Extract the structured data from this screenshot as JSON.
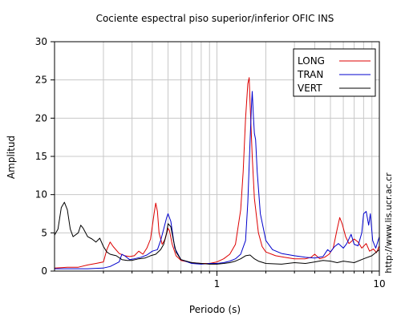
{
  "chart_data": {
    "type": "line",
    "title": "Cociente espectral piso superior/inferior  OFIC INS",
    "xlabel": "Periodo (s)",
    "ylabel": "Amplitud",
    "watermark": "http://www.lis.ucr.ac.cr",
    "x_scale": "log",
    "xlim": [
      0.1,
      10
    ],
    "ylim": [
      0,
      30
    ],
    "x_tick_labels": [
      {
        "value": 1,
        "label": "1"
      },
      {
        "value": 10,
        "label": "10"
      }
    ],
    "y_ticks": [
      0,
      5,
      10,
      15,
      20,
      25,
      30
    ],
    "grid": true,
    "legend_position": "top-right",
    "series": [
      {
        "name": "LONG",
        "color": "#dd0000",
        "points": [
          [
            0.1,
            0.4
          ],
          [
            0.12,
            0.5
          ],
          [
            0.14,
            0.5
          ],
          [
            0.16,
            0.8
          ],
          [
            0.18,
            1.0
          ],
          [
            0.2,
            1.2
          ],
          [
            0.21,
            2.8
          ],
          [
            0.22,
            3.8
          ],
          [
            0.23,
            3.2
          ],
          [
            0.25,
            2.3
          ],
          [
            0.27,
            2.0
          ],
          [
            0.29,
            1.9
          ],
          [
            0.31,
            2.0
          ],
          [
            0.33,
            2.6
          ],
          [
            0.35,
            2.2
          ],
          [
            0.37,
            3.0
          ],
          [
            0.39,
            4.2
          ],
          [
            0.41,
            7.5
          ],
          [
            0.42,
            8.9
          ],
          [
            0.43,
            7.8
          ],
          [
            0.44,
            5.0
          ],
          [
            0.46,
            3.5
          ],
          [
            0.48,
            4.2
          ],
          [
            0.5,
            5.6
          ],
          [
            0.51,
            5.3
          ],
          [
            0.53,
            3.5
          ],
          [
            0.56,
            2.0
          ],
          [
            0.6,
            1.4
          ],
          [
            0.7,
            1.1
          ],
          [
            0.8,
            1.0
          ],
          [
            0.9,
            1.0
          ],
          [
            1.0,
            1.2
          ],
          [
            1.1,
            1.6
          ],
          [
            1.2,
            2.2
          ],
          [
            1.3,
            3.5
          ],
          [
            1.4,
            8.0
          ],
          [
            1.45,
            13.0
          ],
          [
            1.5,
            20.0
          ],
          [
            1.55,
            24.5
          ],
          [
            1.58,
            25.3
          ],
          [
            1.6,
            22.0
          ],
          [
            1.65,
            15.0
          ],
          [
            1.7,
            9.5
          ],
          [
            1.8,
            5.0
          ],
          [
            1.9,
            3.2
          ],
          [
            2.0,
            2.5
          ],
          [
            2.3,
            2.0
          ],
          [
            2.6,
            1.8
          ],
          [
            3.0,
            1.6
          ],
          [
            3.5,
            1.6
          ],
          [
            3.8,
            1.8
          ],
          [
            4.0,
            2.2
          ],
          [
            4.3,
            1.6
          ],
          [
            4.6,
            1.8
          ],
          [
            4.9,
            2.2
          ],
          [
            5.2,
            3.0
          ],
          [
            5.5,
            5.5
          ],
          [
            5.7,
            7.0
          ],
          [
            5.9,
            6.2
          ],
          [
            6.2,
            4.5
          ],
          [
            6.5,
            3.6
          ],
          [
            7.0,
            4.2
          ],
          [
            7.4,
            3.8
          ],
          [
            7.8,
            3.0
          ],
          [
            8.3,
            3.6
          ],
          [
            8.7,
            2.6
          ],
          [
            9.2,
            2.9
          ],
          [
            9.6,
            2.4
          ],
          [
            10.0,
            3.3
          ]
        ]
      },
      {
        "name": "TRAN",
        "color": "#0000cc",
        "points": [
          [
            0.1,
            0.3
          ],
          [
            0.13,
            0.3
          ],
          [
            0.16,
            0.3
          ],
          [
            0.2,
            0.4
          ],
          [
            0.22,
            0.6
          ],
          [
            0.25,
            1.2
          ],
          [
            0.26,
            2.2
          ],
          [
            0.27,
            2.0
          ],
          [
            0.29,
            1.5
          ],
          [
            0.31,
            1.6
          ],
          [
            0.34,
            1.8
          ],
          [
            0.37,
            2.1
          ],
          [
            0.4,
            2.6
          ],
          [
            0.43,
            2.8
          ],
          [
            0.45,
            4.0
          ],
          [
            0.47,
            5.5
          ],
          [
            0.49,
            7.0
          ],
          [
            0.5,
            7.5
          ],
          [
            0.52,
            6.5
          ],
          [
            0.55,
            3.0
          ],
          [
            0.6,
            1.5
          ],
          [
            0.7,
            1.0
          ],
          [
            0.8,
            0.9
          ],
          [
            0.9,
            1.0
          ],
          [
            1.0,
            1.0
          ],
          [
            1.1,
            1.1
          ],
          [
            1.2,
            1.3
          ],
          [
            1.3,
            1.6
          ],
          [
            1.4,
            2.2
          ],
          [
            1.5,
            4.0
          ],
          [
            1.55,
            9.0
          ],
          [
            1.6,
            17.0
          ],
          [
            1.63,
            21.5
          ],
          [
            1.65,
            23.5
          ],
          [
            1.68,
            20.0
          ],
          [
            1.7,
            18.0
          ],
          [
            1.73,
            17.2
          ],
          [
            1.77,
            13.0
          ],
          [
            1.85,
            7.5
          ],
          [
            2.0,
            4.0
          ],
          [
            2.2,
            2.8
          ],
          [
            2.5,
            2.3
          ],
          [
            3.0,
            2.0
          ],
          [
            3.5,
            1.8
          ],
          [
            4.0,
            1.7
          ],
          [
            4.5,
            1.9
          ],
          [
            4.8,
            2.8
          ],
          [
            5.0,
            2.5
          ],
          [
            5.3,
            3.2
          ],
          [
            5.6,
            3.6
          ],
          [
            6.0,
            3.0
          ],
          [
            6.3,
            3.6
          ],
          [
            6.7,
            4.8
          ],
          [
            7.0,
            3.5
          ],
          [
            7.4,
            3.3
          ],
          [
            7.8,
            5.0
          ],
          [
            8.0,
            7.5
          ],
          [
            8.3,
            7.8
          ],
          [
            8.6,
            6.0
          ],
          [
            8.8,
            7.5
          ],
          [
            9.1,
            4.0
          ],
          [
            9.5,
            3.0
          ],
          [
            10.0,
            4.5
          ]
        ]
      },
      {
        "name": "VERT",
        "color": "#000000",
        "points": [
          [
            0.1,
            4.7
          ],
          [
            0.105,
            5.5
          ],
          [
            0.11,
            8.3
          ],
          [
            0.115,
            9.0
          ],
          [
            0.12,
            8.0
          ],
          [
            0.125,
            5.5
          ],
          [
            0.13,
            4.5
          ],
          [
            0.14,
            5.0
          ],
          [
            0.145,
            6.0
          ],
          [
            0.15,
            5.6
          ],
          [
            0.16,
            4.5
          ],
          [
            0.17,
            4.2
          ],
          [
            0.18,
            3.8
          ],
          [
            0.19,
            4.3
          ],
          [
            0.2,
            3.2
          ],
          [
            0.21,
            2.5
          ],
          [
            0.22,
            2.2
          ],
          [
            0.23,
            2.1
          ],
          [
            0.24,
            2.0
          ],
          [
            0.26,
            1.5
          ],
          [
            0.28,
            1.4
          ],
          [
            0.3,
            1.4
          ],
          [
            0.33,
            1.6
          ],
          [
            0.36,
            1.7
          ],
          [
            0.39,
            2.0
          ],
          [
            0.42,
            2.2
          ],
          [
            0.45,
            2.8
          ],
          [
            0.47,
            3.5
          ],
          [
            0.49,
            5.0
          ],
          [
            0.5,
            6.2
          ],
          [
            0.52,
            5.8
          ],
          [
            0.54,
            4.0
          ],
          [
            0.56,
            2.5
          ],
          [
            0.6,
            1.5
          ],
          [
            0.7,
            1.1
          ],
          [
            0.8,
            1.0
          ],
          [
            0.9,
            0.9
          ],
          [
            1.0,
            0.9
          ],
          [
            1.1,
            1.0
          ],
          [
            1.2,
            1.1
          ],
          [
            1.3,
            1.3
          ],
          [
            1.4,
            1.6
          ],
          [
            1.5,
            2.0
          ],
          [
            1.6,
            2.1
          ],
          [
            1.7,
            1.6
          ],
          [
            1.8,
            1.3
          ],
          [
            2.0,
            1.0
          ],
          [
            2.5,
            0.9
          ],
          [
            3.0,
            1.1
          ],
          [
            3.5,
            1.0
          ],
          [
            4.0,
            1.2
          ],
          [
            4.5,
            1.4
          ],
          [
            5.0,
            1.3
          ],
          [
            5.5,
            1.1
          ],
          [
            6.0,
            1.3
          ],
          [
            7.0,
            1.1
          ],
          [
            8.0,
            1.6
          ],
          [
            9.0,
            2.0
          ],
          [
            10.0,
            2.8
          ]
        ]
      }
    ]
  }
}
